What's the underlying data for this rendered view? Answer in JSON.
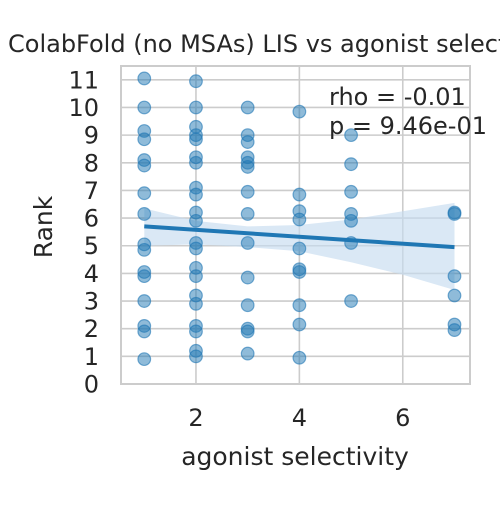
{
  "chart_data": {
    "type": "scatter",
    "title": "ColabFold (no MSAs) LIS vs agonist selectivity",
    "xlabel": "agonist selectivity",
    "ylabel": "Rank",
    "xlim": [
      0.55,
      7.3
    ],
    "ylim": [
      0,
      11.5
    ],
    "x_ticks": [
      2,
      4,
      6
    ],
    "y_ticks": [
      0,
      1,
      2,
      3,
      4,
      5,
      6,
      7,
      8,
      9,
      10,
      11
    ],
    "grid": true,
    "legend": "none",
    "annotations": [
      "rho = -0.01",
      "p = 9.46e-01"
    ],
    "points": [
      {
        "x": 1,
        "y": 11.05
      },
      {
        "x": 1,
        "y": 10.0
      },
      {
        "x": 1,
        "y": 9.15
      },
      {
        "x": 1,
        "y": 8.85
      },
      {
        "x": 1,
        "y": 8.1
      },
      {
        "x": 1,
        "y": 7.9
      },
      {
        "x": 1,
        "y": 6.9
      },
      {
        "x": 1,
        "y": 6.15
      },
      {
        "x": 1,
        "y": 5.05
      },
      {
        "x": 1,
        "y": 4.85
      },
      {
        "x": 1,
        "y": 4.05
      },
      {
        "x": 1,
        "y": 3.9
      },
      {
        "x": 1,
        "y": 3.0
      },
      {
        "x": 1,
        "y": 2.1
      },
      {
        "x": 1,
        "y": 1.9
      },
      {
        "x": 1,
        "y": 0.9
      },
      {
        "x": 2,
        "y": 10.95
      },
      {
        "x": 2,
        "y": 10.0
      },
      {
        "x": 2,
        "y": 9.3
      },
      {
        "x": 2,
        "y": 9.0
      },
      {
        "x": 2,
        "y": 8.85
      },
      {
        "x": 2,
        "y": 8.2
      },
      {
        "x": 2,
        "y": 8.0
      },
      {
        "x": 2,
        "y": 7.1
      },
      {
        "x": 2,
        "y": 6.85
      },
      {
        "x": 2,
        "y": 6.2
      },
      {
        "x": 2,
        "y": 5.9
      },
      {
        "x": 2,
        "y": 5.1
      },
      {
        "x": 2,
        "y": 4.9
      },
      {
        "x": 2,
        "y": 4.2
      },
      {
        "x": 2,
        "y": 3.9
      },
      {
        "x": 2,
        "y": 3.2
      },
      {
        "x": 2,
        "y": 2.9
      },
      {
        "x": 2,
        "y": 2.1
      },
      {
        "x": 2,
        "y": 1.9
      },
      {
        "x": 2,
        "y": 1.2
      },
      {
        "x": 2,
        "y": 1.0
      },
      {
        "x": 3,
        "y": 10.0
      },
      {
        "x": 3,
        "y": 9.0
      },
      {
        "x": 3,
        "y": 8.75
      },
      {
        "x": 3,
        "y": 8.2
      },
      {
        "x": 3,
        "y": 8.0
      },
      {
        "x": 3,
        "y": 7.85
      },
      {
        "x": 3,
        "y": 6.95
      },
      {
        "x": 3,
        "y": 6.15
      },
      {
        "x": 3,
        "y": 5.1
      },
      {
        "x": 3,
        "y": 3.85
      },
      {
        "x": 3,
        "y": 2.85
      },
      {
        "x": 3,
        "y": 2.0
      },
      {
        "x": 3,
        "y": 1.9
      },
      {
        "x": 3,
        "y": 1.1
      },
      {
        "x": 4,
        "y": 9.85
      },
      {
        "x": 4,
        "y": 6.85
      },
      {
        "x": 4,
        "y": 6.25
      },
      {
        "x": 4,
        "y": 5.95
      },
      {
        "x": 4,
        "y": 4.9
      },
      {
        "x": 4,
        "y": 4.15
      },
      {
        "x": 4,
        "y": 4.05
      },
      {
        "x": 4,
        "y": 2.85
      },
      {
        "x": 4,
        "y": 2.15
      },
      {
        "x": 4,
        "y": 0.95
      },
      {
        "x": 5,
        "y": 9.0
      },
      {
        "x": 5,
        "y": 7.95
      },
      {
        "x": 5,
        "y": 6.95
      },
      {
        "x": 5,
        "y": 6.15
      },
      {
        "x": 5,
        "y": 5.9
      },
      {
        "x": 5,
        "y": 5.1
      },
      {
        "x": 5,
        "y": 3.0
      },
      {
        "x": 7,
        "y": 6.2
      },
      {
        "x": 7,
        "y": 6.15
      },
      {
        "x": 7,
        "y": 3.9
      },
      {
        "x": 7,
        "y": 3.2
      },
      {
        "x": 7,
        "y": 2.15
      },
      {
        "x": 7,
        "y": 1.95
      }
    ],
    "regression": {
      "x": [
        1,
        7
      ],
      "y": [
        5.7,
        4.95
      ]
    },
    "confidence_band": {
      "x": [
        1,
        2,
        3,
        4,
        5,
        6,
        7
      ],
      "upper": [
        6.35,
        5.9,
        5.7,
        5.75,
        5.95,
        6.25,
        6.55
      ],
      "lower": [
        5.0,
        5.05,
        4.95,
        4.8,
        4.4,
        3.95,
        3.4
      ]
    },
    "colors": {
      "point": "#1f77b4",
      "line": "#1f77b4",
      "band": "#c6dbef",
      "grid": "#cccccc",
      "spine": "#cccccc",
      "text": "#262626"
    }
  }
}
